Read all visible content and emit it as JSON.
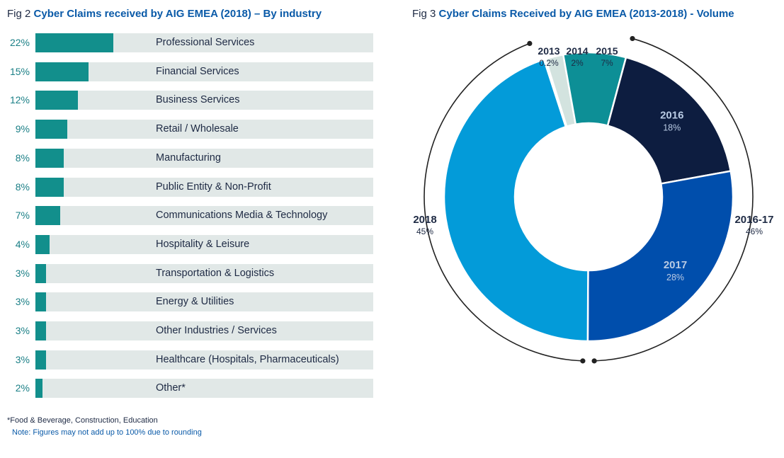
{
  "fig2": {
    "prefix": "Fig 2",
    "title": "Cyber Claims received by AIG EMEA (2018) – By industry"
  },
  "fig3": {
    "prefix": "Fig 3",
    "title": "Cyber Claims Received by AIG EMEA (2013-2018) - Volume"
  },
  "footnotes": {
    "other": "*Food & Beverage, Construction, Education",
    "note": "Note: Figures may not add up to 100% due to rounding"
  },
  "colors": {
    "bar": "#128f8c",
    "track": "#e1e8e7",
    "percent_text": "#1a7f86",
    "title_accent": "#0a5aa8"
  },
  "chart_data": [
    {
      "type": "bar",
      "orientation": "horizontal",
      "title": "Cyber Claims received by AIG EMEA (2018) – By industry",
      "unit": "%",
      "xlim": [
        0,
        100
      ],
      "categories": [
        "Professional Services",
        "Financial Services",
        "Business Services",
        "Retail / Wholesale",
        "Manufacturing",
        "Public Entity & Non-Profit",
        "Communications Media & Technology",
        "Hospitality & Leisure",
        "Transportation & Logistics",
        "Energy & Utilities",
        "Other Industries / Services",
        "Healthcare (Hospitals, Pharmaceuticals)",
        "Other*"
      ],
      "values": [
        22,
        15,
        12,
        9,
        8,
        8,
        7,
        4,
        3,
        3,
        3,
        3,
        2
      ],
      "labels": [
        "22%",
        "15%",
        "12%",
        "9%",
        "8%",
        "8%",
        "7%",
        "4%",
        "3%",
        "3%",
        "3%",
        "3%",
        "2%"
      ]
    },
    {
      "type": "pie",
      "variant": "donut",
      "title": "Cyber Claims Received by AIG EMEA (2013-2018) - Volume",
      "slices": [
        {
          "label": "2013",
          "pct_label": "0.2%",
          "value": 0.2,
          "color": "#1f8f3a"
        },
        {
          "label": "2014",
          "pct_label": "2%",
          "value": 2,
          "color": "#d3e3df"
        },
        {
          "label": "2015",
          "pct_label": "7%",
          "value": 7,
          "color": "#0d8f96"
        },
        {
          "label": "2016",
          "pct_label": "18%",
          "value": 18,
          "color": "#0d1d40"
        },
        {
          "label": "2017",
          "pct_label": "28%",
          "value": 28,
          "color": "#004eac"
        },
        {
          "label": "2018",
          "pct_label": "45%",
          "value": 45,
          "color": "#039bd9"
        }
      ],
      "brackets": [
        {
          "label": "2018",
          "pct_label": "45%"
        },
        {
          "label": "2016-17",
          "pct_label": "46%"
        }
      ]
    }
  ]
}
